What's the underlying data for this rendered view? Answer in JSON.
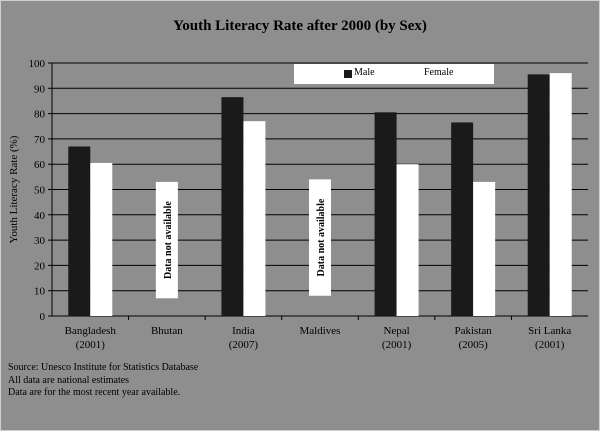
{
  "chart_data": {
    "type": "bar",
    "title": "Youth Literacy Rate after 2000 (by Sex)",
    "ylabel": "Youth Literacy  Rate (%)",
    "xlabel": "",
    "ylim": [
      0,
      100
    ],
    "yticks": [
      0,
      10,
      20,
      30,
      40,
      50,
      60,
      70,
      80,
      90,
      100
    ],
    "grid": true,
    "legend_position": "top-right",
    "categories": [
      {
        "name": "Bangladesh",
        "year": "(2001)"
      },
      {
        "name": "Bhutan",
        "year": ""
      },
      {
        "name": "India",
        "year": "(2007)"
      },
      {
        "name": "Maldives",
        "year": ""
      },
      {
        "name": "Nepal",
        "year": "(2001)"
      },
      {
        "name": "Pakistan",
        "year": "(2005)"
      },
      {
        "name": "Sri Lanka",
        "year": "(2001)"
      }
    ],
    "series": [
      {
        "name": "Male",
        "color": "#1a1a1a",
        "values": [
          67,
          null,
          86.5,
          null,
          80.5,
          76.5,
          95.5
        ]
      },
      {
        "name": "Female",
        "color": "#ffffff",
        "values": [
          60.5,
          null,
          77,
          null,
          60,
          53,
          96
        ]
      }
    ],
    "annotations": [
      {
        "category": "Bhutan",
        "text": "Data not available",
        "y_from": 7,
        "y_to": 53
      },
      {
        "category": "Maldives",
        "text": "Data not available",
        "y_from": 8,
        "y_to": 54
      }
    ]
  },
  "notes": [
    "Source: Unesco Institute for Statistics Database",
    "All data are national estimates",
    "Data are for the most recent year available."
  ],
  "colors": {
    "background": "#8e8e8e",
    "grid": "#000000"
  }
}
